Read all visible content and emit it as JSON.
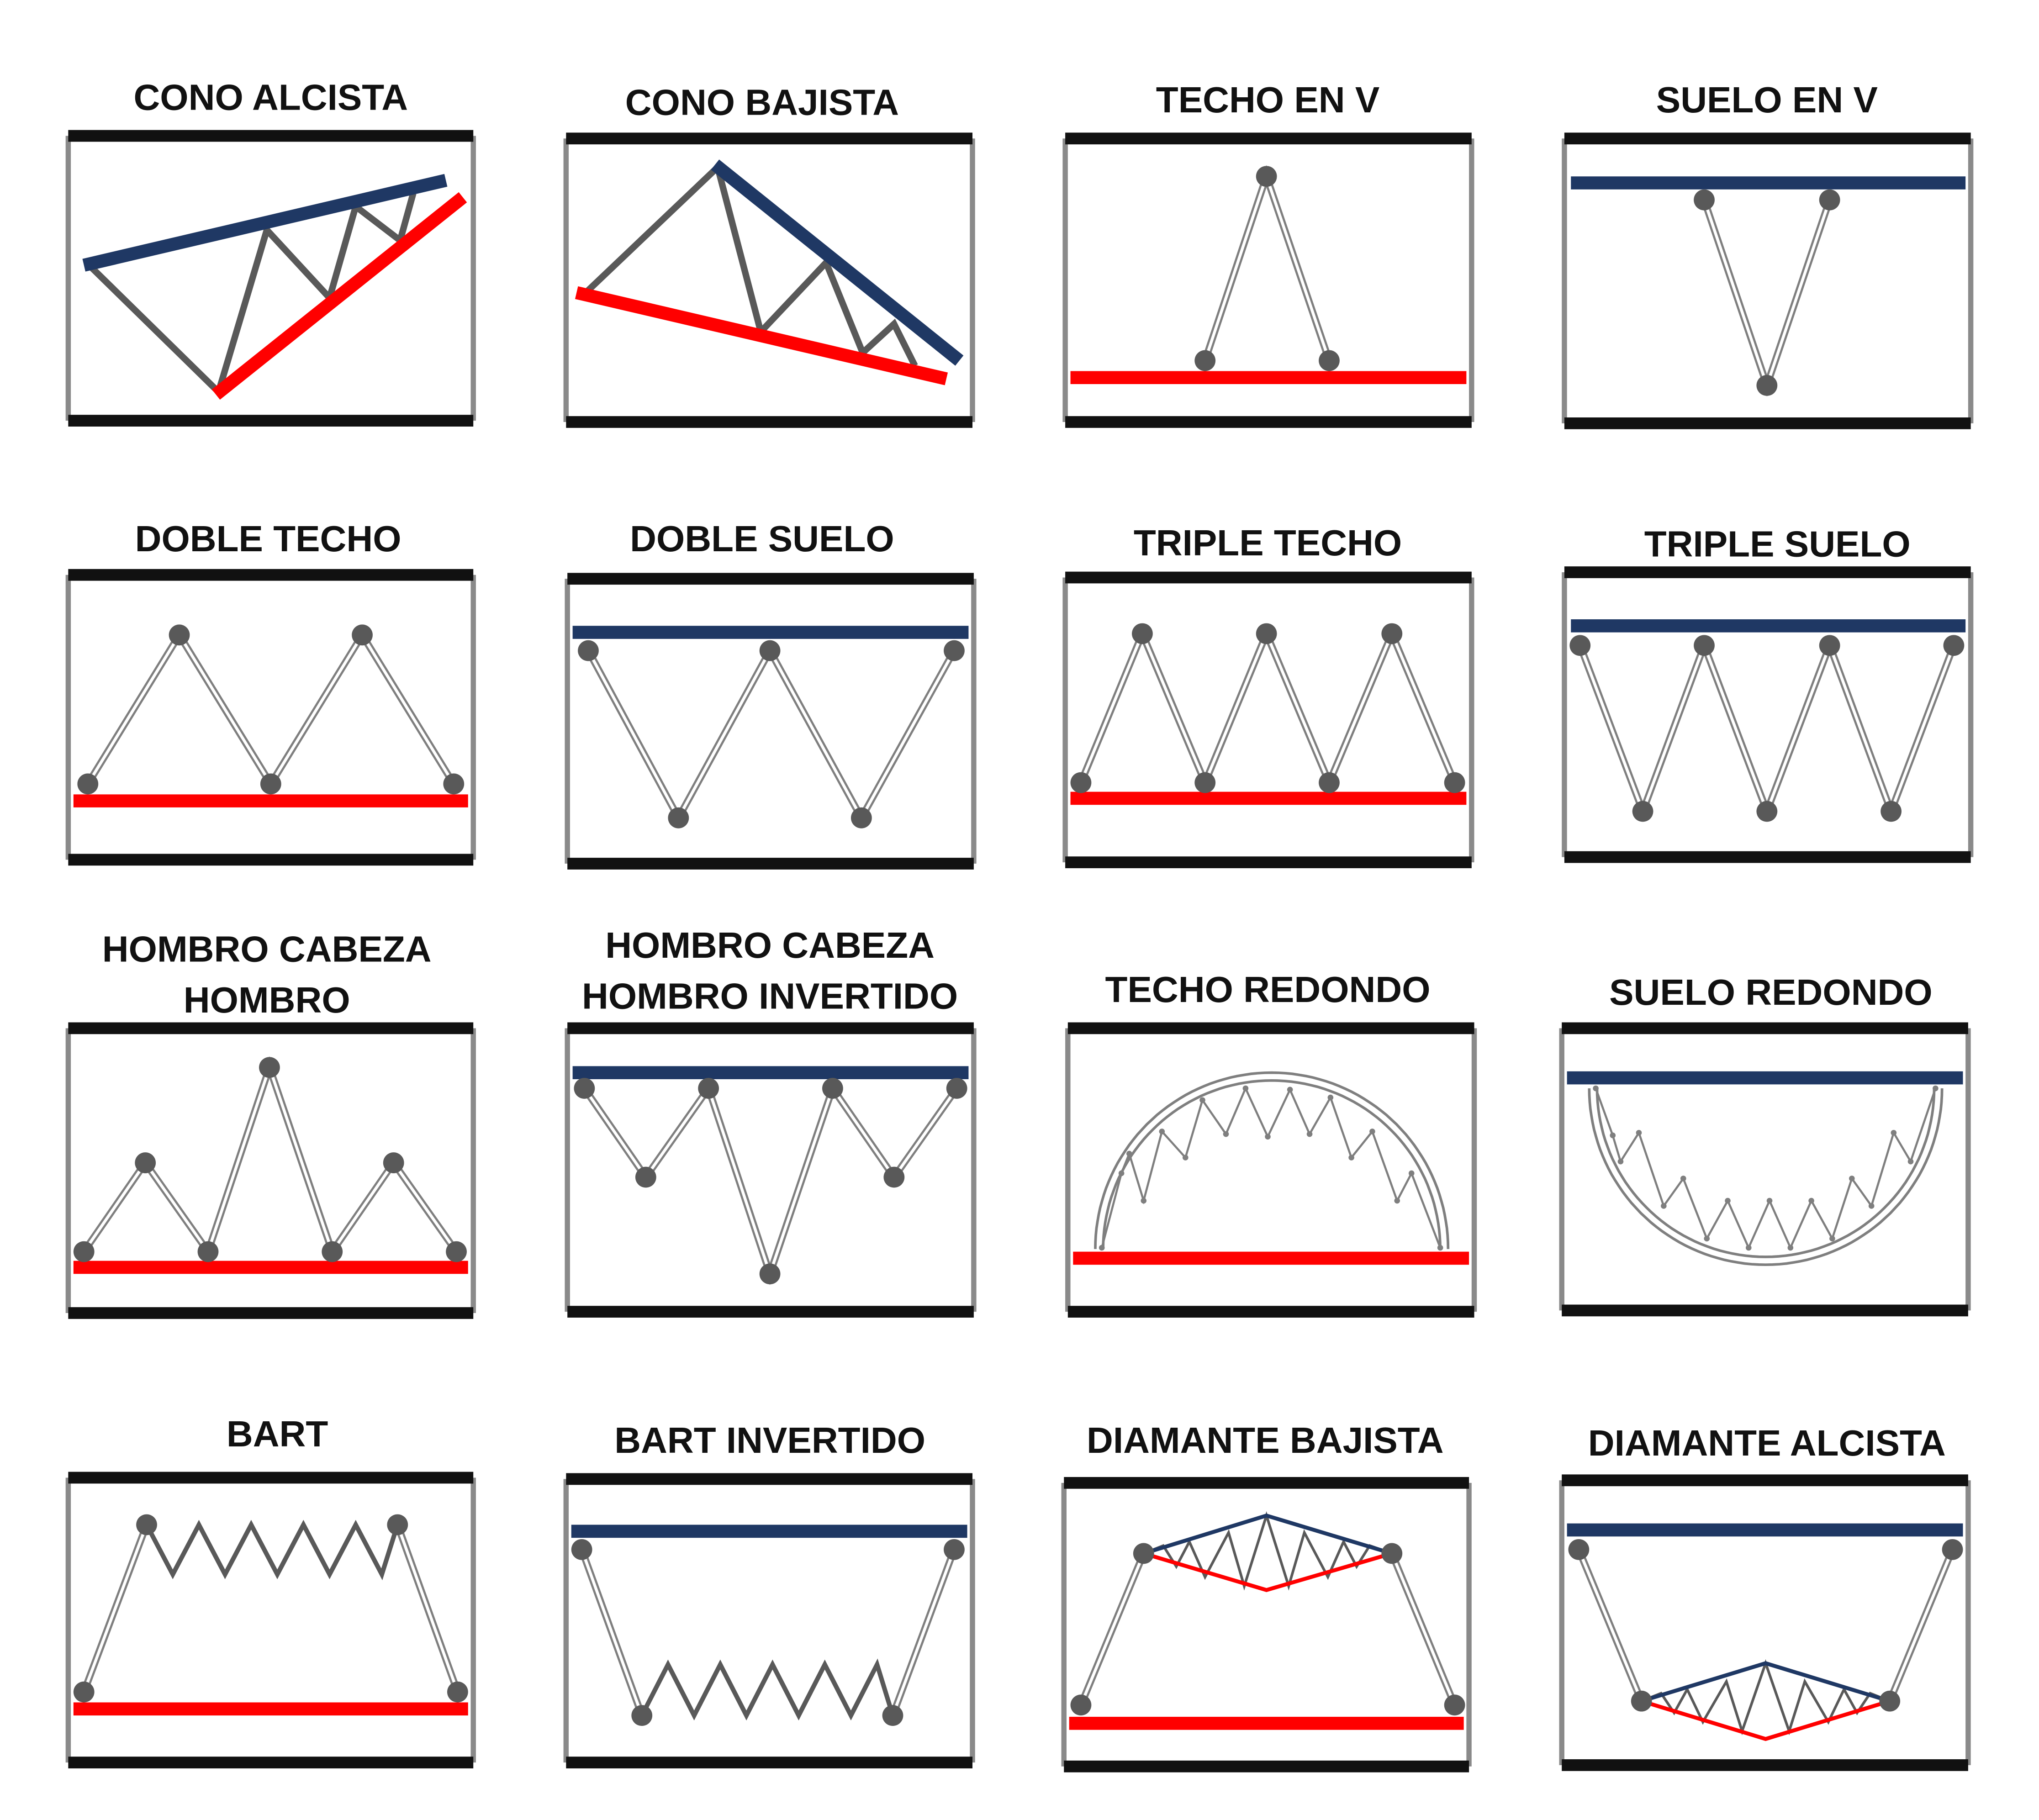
{
  "colors": {
    "resistance": "#1f3864",
    "support": "#ff0000",
    "price": "#595959",
    "price_light": "#7f7f7f",
    "frame": "#111111"
  },
  "patterns": [
    {
      "id": "cono-alcista",
      "title": [
        "CONO ALCISTA"
      ]
    },
    {
      "id": "cono-bajista",
      "title": [
        "CONO BAJISTA"
      ]
    },
    {
      "id": "techo-en-v",
      "title": [
        "TECHO EN V"
      ]
    },
    {
      "id": "suelo-en-v",
      "title": [
        "SUELO EN V"
      ]
    },
    {
      "id": "doble-techo",
      "title": [
        "DOBLE TECHO"
      ]
    },
    {
      "id": "doble-suelo",
      "title": [
        "DOBLE SUELO"
      ]
    },
    {
      "id": "triple-techo",
      "title": [
        "TRIPLE TECHO"
      ]
    },
    {
      "id": "triple-suelo",
      "title": [
        "TRIPLE SUELO"
      ]
    },
    {
      "id": "hombro-cabeza-hombro",
      "title": [
        "HOMBRO CABEZA",
        "HOMBRO"
      ]
    },
    {
      "id": "hombro-cabeza-hombro-invertido",
      "title": [
        "HOMBRO CABEZA",
        "HOMBRO INVERTIDO"
      ]
    },
    {
      "id": "techo-redondo",
      "title": [
        "TECHO REDONDO"
      ]
    },
    {
      "id": "suelo-redondo",
      "title": [
        "SUELO REDONDO"
      ]
    },
    {
      "id": "bart",
      "title": [
        "BART"
      ]
    },
    {
      "id": "bart-invertido",
      "title": [
        "BART INVERTIDO"
      ]
    },
    {
      "id": "diamante-bajista",
      "title": [
        "DIAMANTE BAJISTA"
      ]
    },
    {
      "id": "diamante-alcista",
      "title": [
        "DIAMANTE ALCISTA"
      ]
    }
  ]
}
